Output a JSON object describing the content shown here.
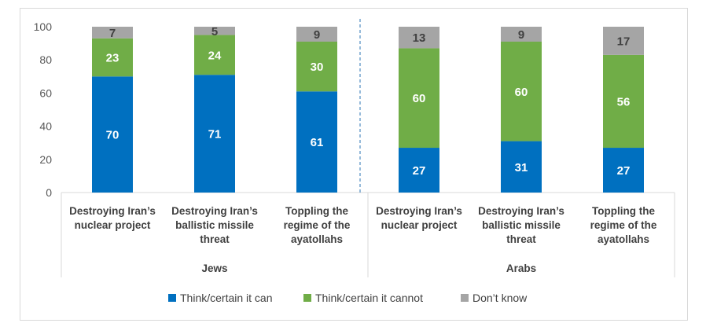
{
  "chart_data": {
    "type": "bar",
    "stacked": true,
    "groups": [
      {
        "name": "Jews",
        "categories": [
          [
            "Destroying Iran’s",
            "nuclear project"
          ],
          [
            "Destroying Iran’s",
            "ballistic missile",
            "threat"
          ],
          [
            "Toppling the",
            "regime of the",
            "ayatollahs"
          ]
        ]
      },
      {
        "name": "Arabs",
        "categories": [
          [
            "Destroying Iran’s",
            "nuclear project"
          ],
          [
            "Destroying Iran’s",
            "ballistic missile",
            "threat"
          ],
          [
            "Toppling the",
            "regime of the",
            "ayatollahs"
          ]
        ]
      }
    ],
    "series": [
      {
        "name": "Think/certain it can",
        "color": "#0070c0",
        "values": [
          70,
          71,
          61,
          27,
          31,
          27
        ]
      },
      {
        "name": "Think/certain it cannot",
        "color": "#70ad47",
        "values": [
          23,
          24,
          30,
          60,
          60,
          56
        ]
      },
      {
        "name": "Don’t know",
        "color": "#a5a5a5",
        "values": [
          7,
          5,
          9,
          13,
          9,
          17
        ]
      }
    ],
    "ylim": [
      0,
      100
    ],
    "yticks": [
      "0",
      "20",
      "40",
      "60",
      "80",
      "100"
    ],
    "grid": false,
    "legend": "bottom"
  }
}
